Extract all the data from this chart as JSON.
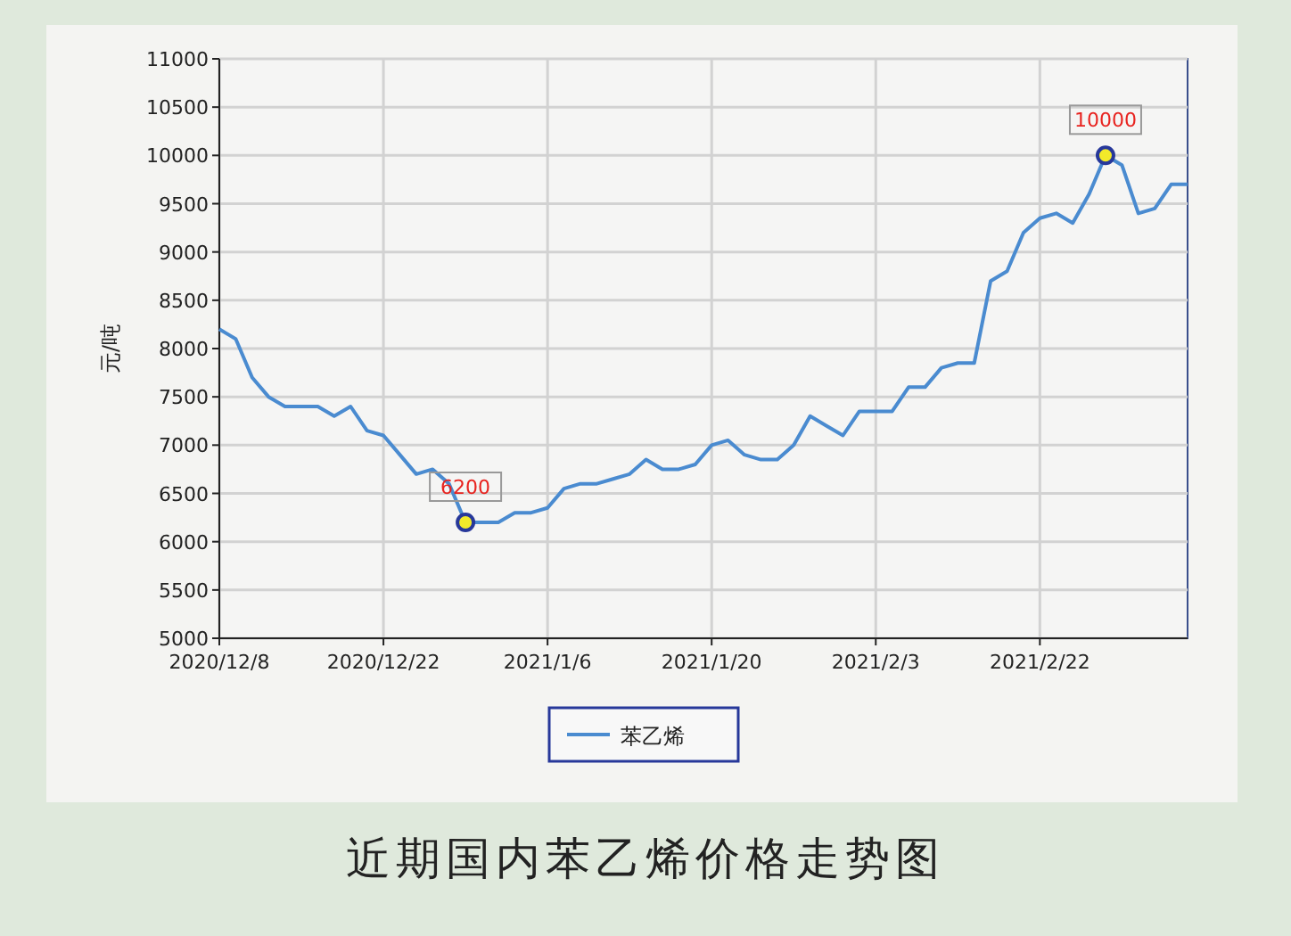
{
  "chart_data": {
    "type": "line",
    "title": "近期国内苯乙烯价格走势图",
    "ylabel": "元/吨",
    "categories": [
      "2020/12/8",
      null,
      null,
      null,
      null,
      null,
      null,
      null,
      null,
      null,
      "2020/12/22",
      null,
      null,
      null,
      null,
      null,
      null,
      null,
      null,
      null,
      "2021/1/6",
      null,
      null,
      null,
      null,
      null,
      null,
      null,
      null,
      null,
      "2021/1/20",
      null,
      null,
      null,
      null,
      null,
      null,
      null,
      null,
      null,
      "2021/2/3",
      null,
      null,
      null,
      null,
      null,
      null,
      null,
      null,
      null,
      "2021/2/22",
      null,
      null,
      null,
      null,
      null,
      null,
      null,
      null,
      null
    ],
    "series": [
      {
        "name": "苯乙烯",
        "color": "#4a8bd0",
        "values": [
          8200,
          8100,
          7700,
          7500,
          7400,
          7400,
          7400,
          7300,
          7400,
          7150,
          7100,
          6900,
          6700,
          6750,
          6600,
          6200,
          6200,
          6200,
          6300,
          6300,
          6350,
          6550,
          6600,
          6600,
          6650,
          6700,
          6850,
          6750,
          6750,
          6800,
          7000,
          7050,
          6900,
          6850,
          6850,
          7000,
          7300,
          7200,
          7100,
          7350,
          7350,
          7350,
          7600,
          7600,
          7800,
          7850,
          7850,
          8700,
          8800,
          9200,
          9350,
          9400,
          9300,
          9600,
          10000,
          9900,
          9400,
          9450,
          9700,
          9700
        ],
        "value_labels": [
          null,
          null,
          null,
          null,
          null,
          null,
          null,
          null,
          null,
          null,
          null,
          null,
          null,
          null,
          null,
          "6200",
          null,
          null,
          null,
          null,
          null,
          null,
          null,
          null,
          null,
          null,
          null,
          null,
          null,
          null,
          null,
          null,
          null,
          null,
          null,
          null,
          null,
          null,
          null,
          null,
          null,
          null,
          null,
          null,
          null,
          null,
          null,
          null,
          null,
          null,
          null,
          null,
          null,
          null,
          "10000",
          null,
          null,
          null,
          null,
          null
        ]
      }
    ],
    "ylim": [
      5000,
      11000
    ],
    "yticks": [
      5000,
      5500,
      6000,
      6500,
      7000,
      7500,
      8000,
      8500,
      9000,
      9500,
      10000,
      10500,
      11000
    ],
    "grid": true,
    "legend": "bottom"
  }
}
